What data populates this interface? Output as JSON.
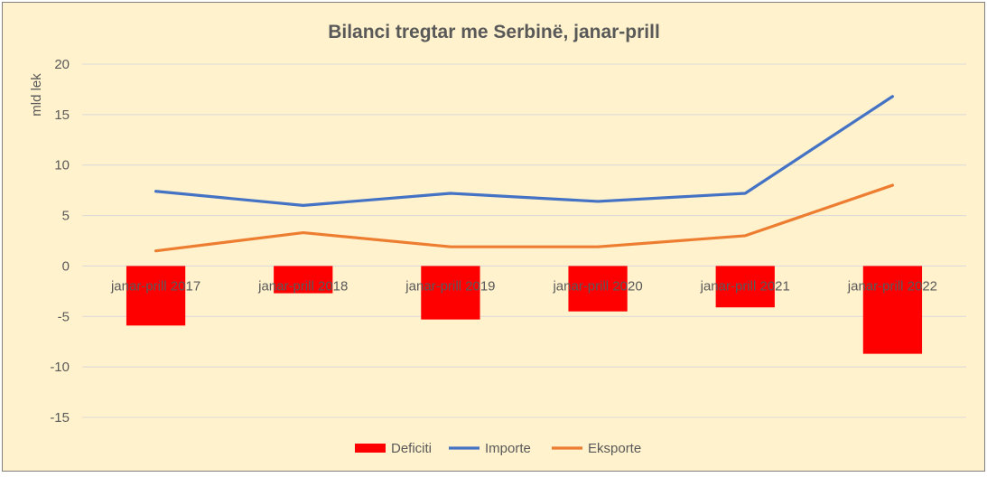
{
  "chart_data": {
    "type": "bar+line",
    "title": "Bilanci tregtar me Serbinë, janar-prill",
    "ylabel": "mld lek",
    "xlabel": "",
    "ylim": [
      -20,
      20
    ],
    "yticks": [
      20,
      15,
      10,
      5,
      0,
      -5,
      -10,
      -15
    ],
    "categories": [
      "janar-prill 2017",
      "janar-prill 2018",
      "janar-prill 2019",
      "janar-prill 2020",
      "janar-prill 2021",
      "janar-prill 2022"
    ],
    "series": [
      {
        "name": "Deficiti",
        "type": "bar",
        "color": "#ff0000",
        "values": [
          -5.9,
          -2.7,
          -5.3,
          -4.5,
          -4.1,
          -8.7
        ]
      },
      {
        "name": "Importe",
        "type": "line",
        "color": "#4472c4",
        "values": [
          7.4,
          6.0,
          7.2,
          6.4,
          7.2,
          16.8
        ]
      },
      {
        "name": "Eksporte",
        "type": "line",
        "color": "#ed7d31",
        "values": [
          1.5,
          3.3,
          1.9,
          1.9,
          3.0,
          8.0
        ]
      }
    ],
    "grid": true,
    "legend": "bottom"
  }
}
